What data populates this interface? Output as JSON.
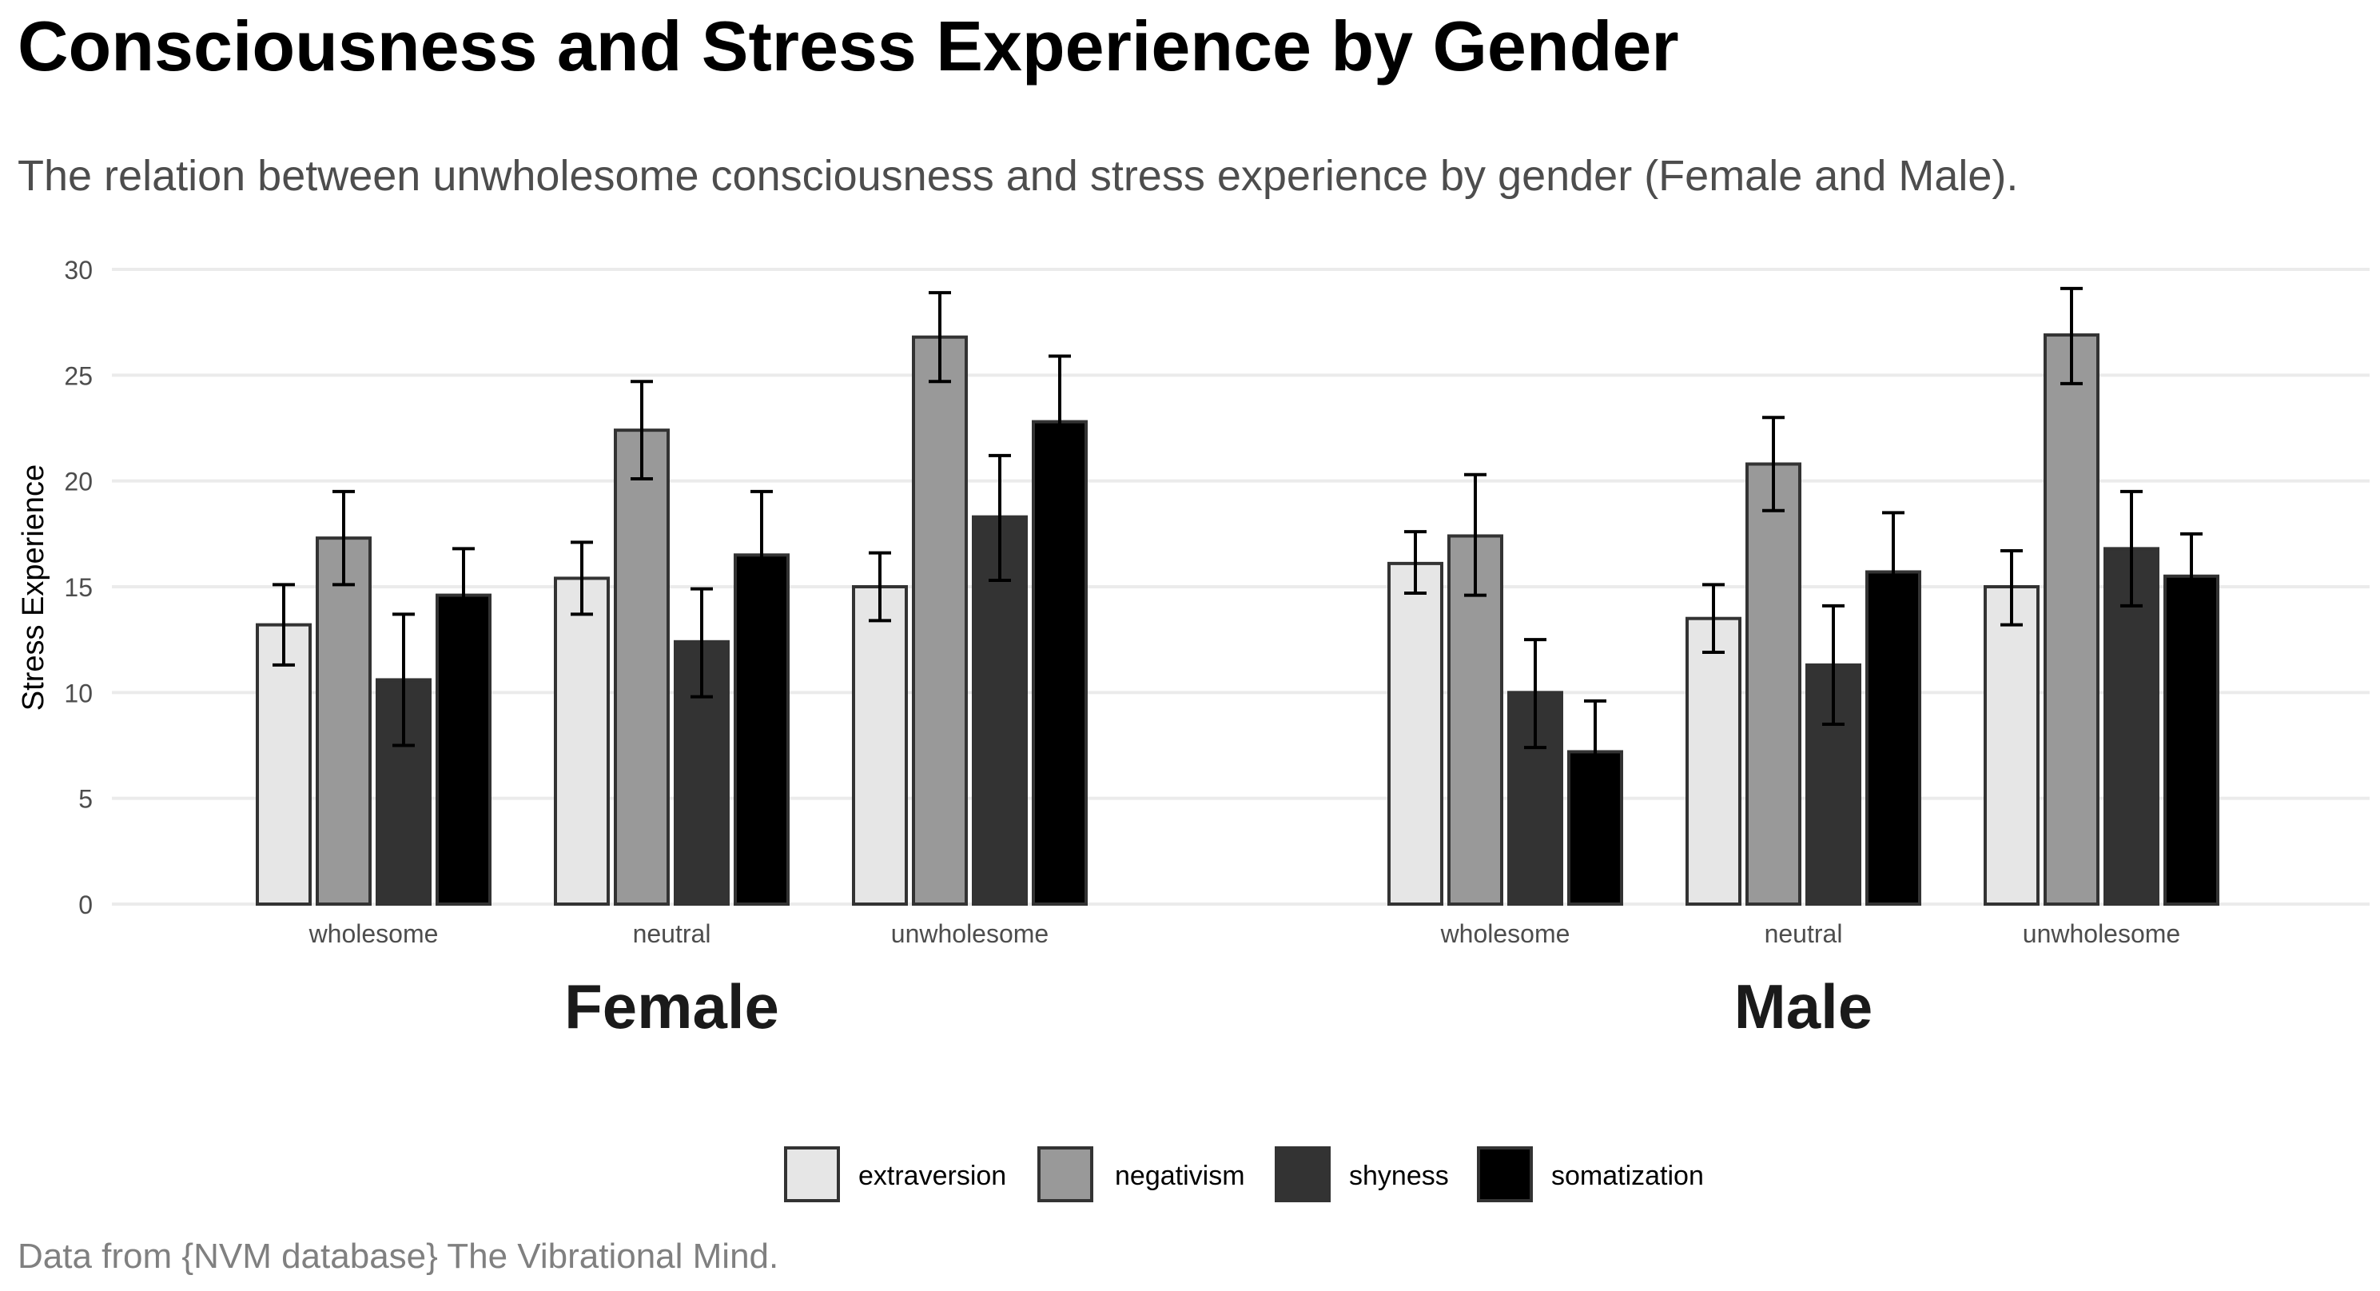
{
  "chart_data": {
    "type": "bar",
    "title": "Consciousness and Stress Experience by Gender",
    "subtitle": "The relation between unwholesome consciousness and stress experience by gender (Female and Male).",
    "caption": "Data from {NVM database} The Vibrational Mind.",
    "ylabel": "Stress Experience",
    "xlabel": "",
    "ylim": [
      0,
      30
    ],
    "yticks": [
      0,
      5,
      10,
      15,
      20,
      25,
      30
    ],
    "grid": true,
    "legend_position": "bottom",
    "facets": [
      "Female",
      "Male"
    ],
    "categories": [
      "wholesome",
      "neutral",
      "unwholesome"
    ],
    "series": [
      {
        "name": "extraversion",
        "color": "#e6e6e6",
        "values": [
          [
            13.2,
            15.4,
            15.0
          ],
          [
            16.1,
            13.5,
            15.0
          ]
        ],
        "error_low": [
          [
            11.3,
            13.7,
            13.4
          ],
          [
            14.7,
            11.9,
            13.2
          ]
        ],
        "error_high": [
          [
            15.1,
            17.1,
            16.6
          ],
          [
            17.6,
            15.1,
            16.7
          ]
        ]
      },
      {
        "name": "negativism",
        "color": "#999999",
        "values": [
          [
            17.3,
            22.4,
            26.8
          ],
          [
            17.4,
            20.8,
            26.9
          ]
        ],
        "error_low": [
          [
            15.1,
            20.1,
            24.7
          ],
          [
            14.6,
            18.6,
            24.6
          ]
        ],
        "error_high": [
          [
            19.5,
            24.7,
            28.9
          ],
          [
            20.3,
            23.0,
            29.1
          ]
        ]
      },
      {
        "name": "shyness",
        "color": "#333333",
        "values": [
          [
            10.6,
            12.4,
            18.3
          ],
          [
            10.0,
            11.3,
            16.8
          ]
        ],
        "error_low": [
          [
            7.5,
            9.8,
            15.3
          ],
          [
            7.4,
            8.5,
            14.1
          ]
        ],
        "error_high": [
          [
            13.7,
            14.9,
            21.2
          ],
          [
            12.5,
            14.1,
            19.5
          ]
        ]
      },
      {
        "name": "somatization",
        "color": "#000000",
        "values": [
          [
            14.6,
            16.5,
            22.8
          ],
          [
            7.2,
            15.7,
            15.5
          ]
        ],
        "error_low": [
          [
            12.4,
            13.6,
            19.6
          ],
          [
            4.9,
            12.8,
            13.5
          ]
        ],
        "error_high": [
          [
            16.8,
            19.5,
            25.9
          ],
          [
            9.6,
            18.5,
            17.5
          ]
        ]
      }
    ]
  }
}
